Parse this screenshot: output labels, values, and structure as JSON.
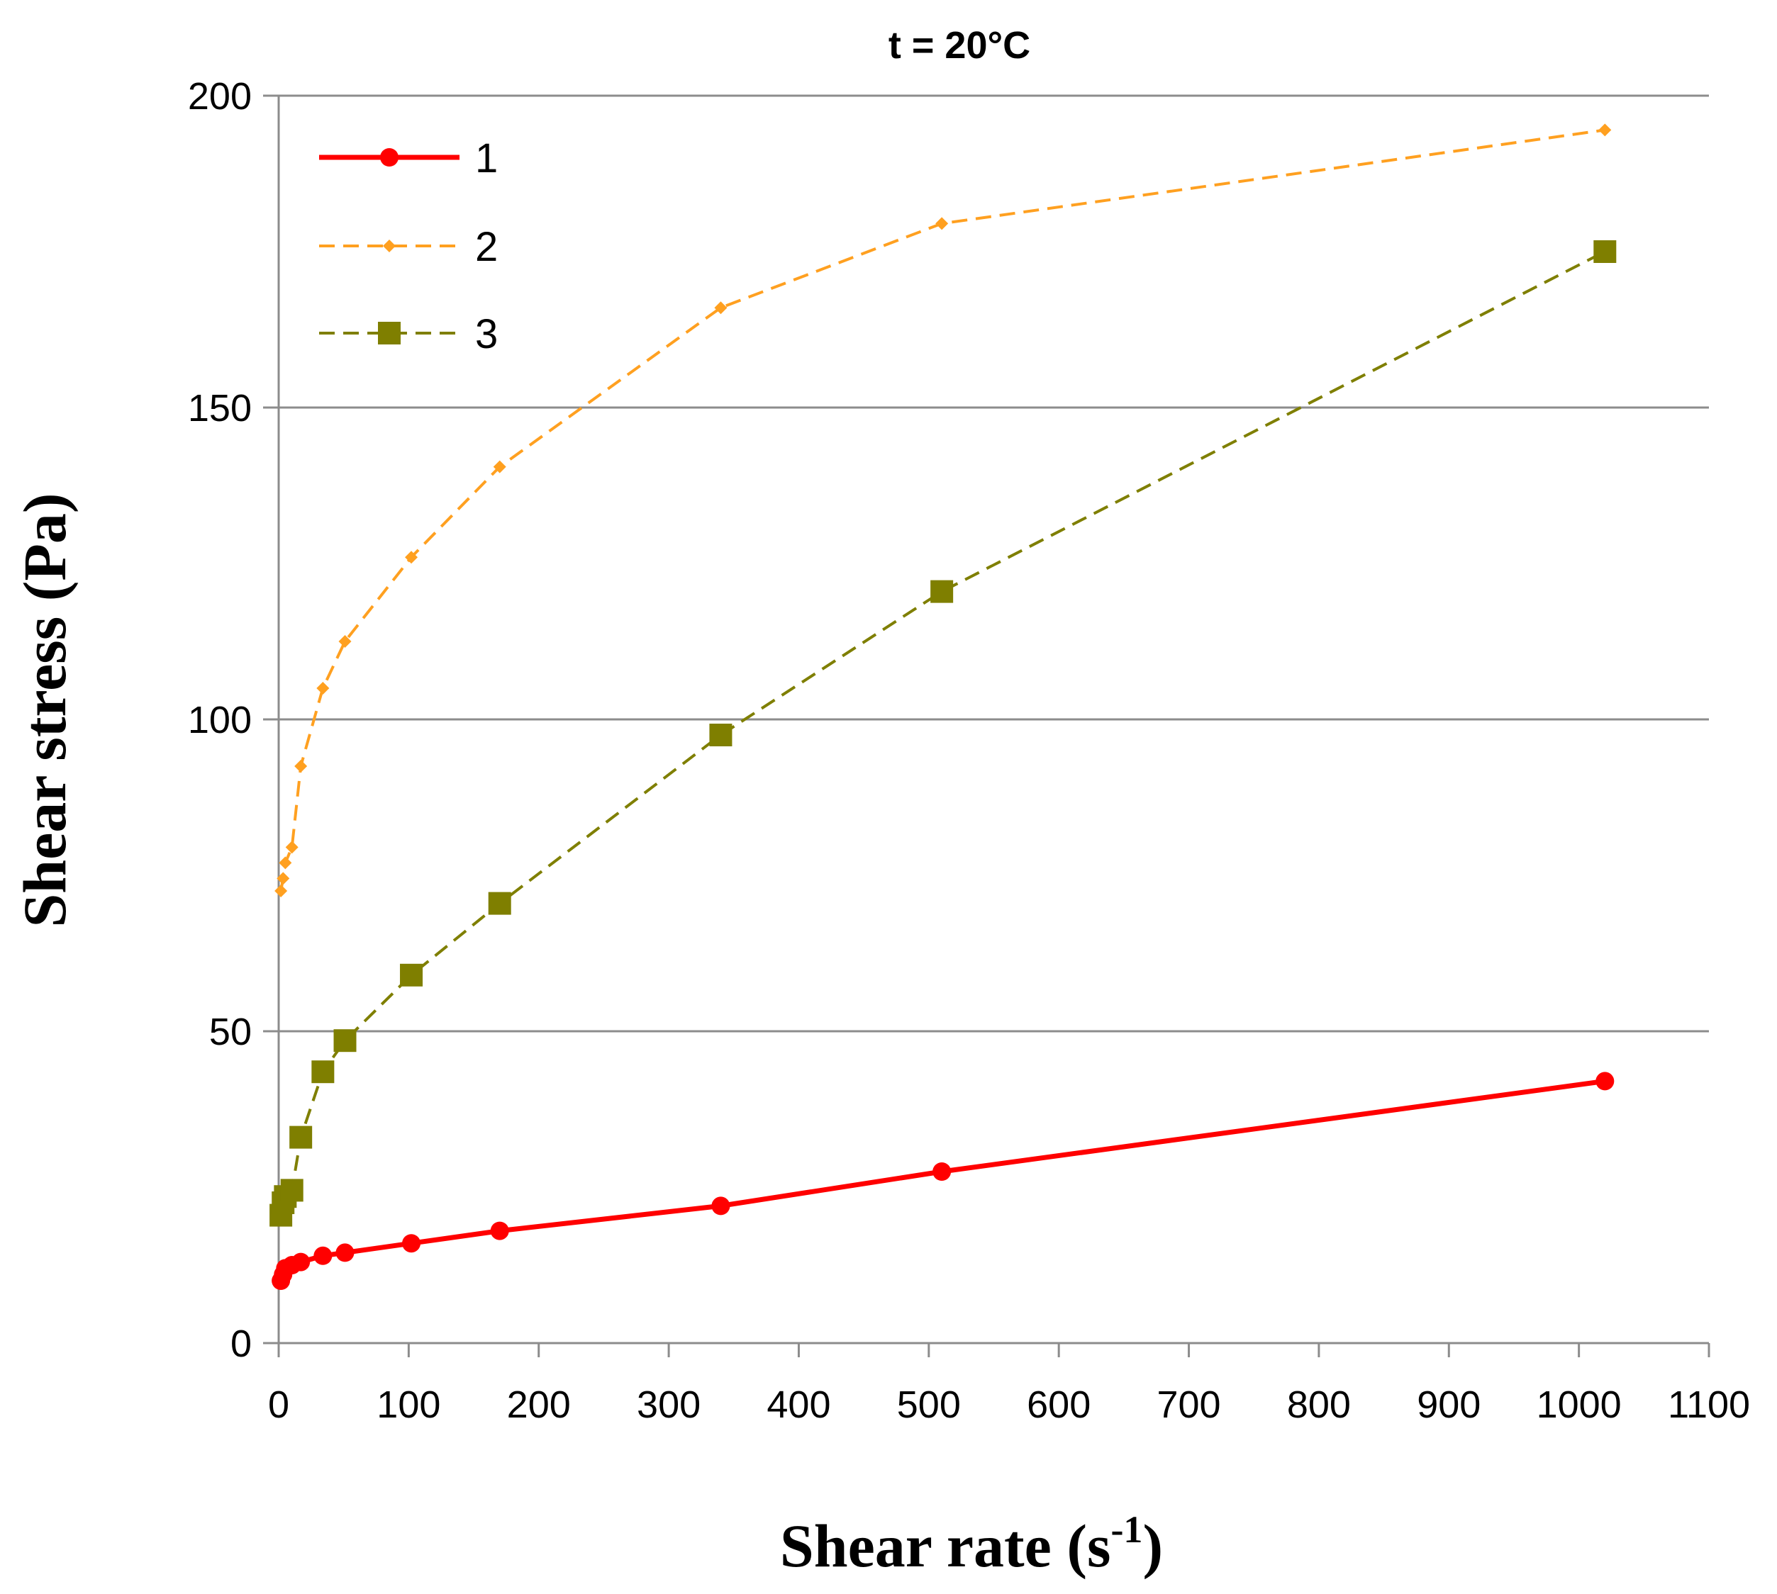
{
  "chart_data": {
    "type": "line",
    "title": "t = 20°C",
    "xlabel": "Shear rate (s",
    "xlabel_sup": "-1",
    "xlabel_end": ")",
    "ylabel": "Shear stress (Pa)",
    "xlim": [
      0,
      1100
    ],
    "ylim": [
      0,
      200
    ],
    "xticks": [
      "0",
      "100",
      "200",
      "300",
      "400",
      "500",
      "600",
      "700",
      "800",
      "900",
      "1000",
      "1100"
    ],
    "yticks": [
      "0",
      "50",
      "100",
      "150",
      "200"
    ],
    "grid": "horizontal",
    "legend_position": "top-left",
    "series": [
      {
        "name": "1",
        "color": "#ff0000",
        "line": "solid",
        "marker": "circle",
        "x": [
          1.7,
          3.4,
          5.1,
          10.2,
          17,
          34,
          51,
          102,
          170,
          340,
          510,
          1020
        ],
        "y": [
          10,
          11,
          12,
          12.5,
          13,
          14,
          14.5,
          16,
          18,
          22,
          27.5,
          42
        ]
      },
      {
        "name": "2",
        "color": "#ffa020",
        "line": "dashed",
        "marker": "diamond",
        "x": [
          1.7,
          3.4,
          5.1,
          10.2,
          17,
          34,
          51,
          102,
          170,
          340,
          510,
          1020
        ],
        "y": [
          72.5,
          74.5,
          77,
          79.5,
          92.5,
          105,
          112.5,
          126,
          140.5,
          166,
          179.5,
          194.5
        ]
      },
      {
        "name": "3",
        "color": "#7f7f00",
        "line": "dashed",
        "marker": "square",
        "x": [
          1.7,
          3.4,
          5.1,
          10.2,
          17,
          34,
          51,
          102,
          170,
          340,
          510,
          1020
        ],
        "y": [
          20.5,
          22.5,
          23.5,
          24.5,
          33,
          43.5,
          48.5,
          59,
          70.5,
          97.5,
          120.5,
          175
        ]
      }
    ]
  }
}
